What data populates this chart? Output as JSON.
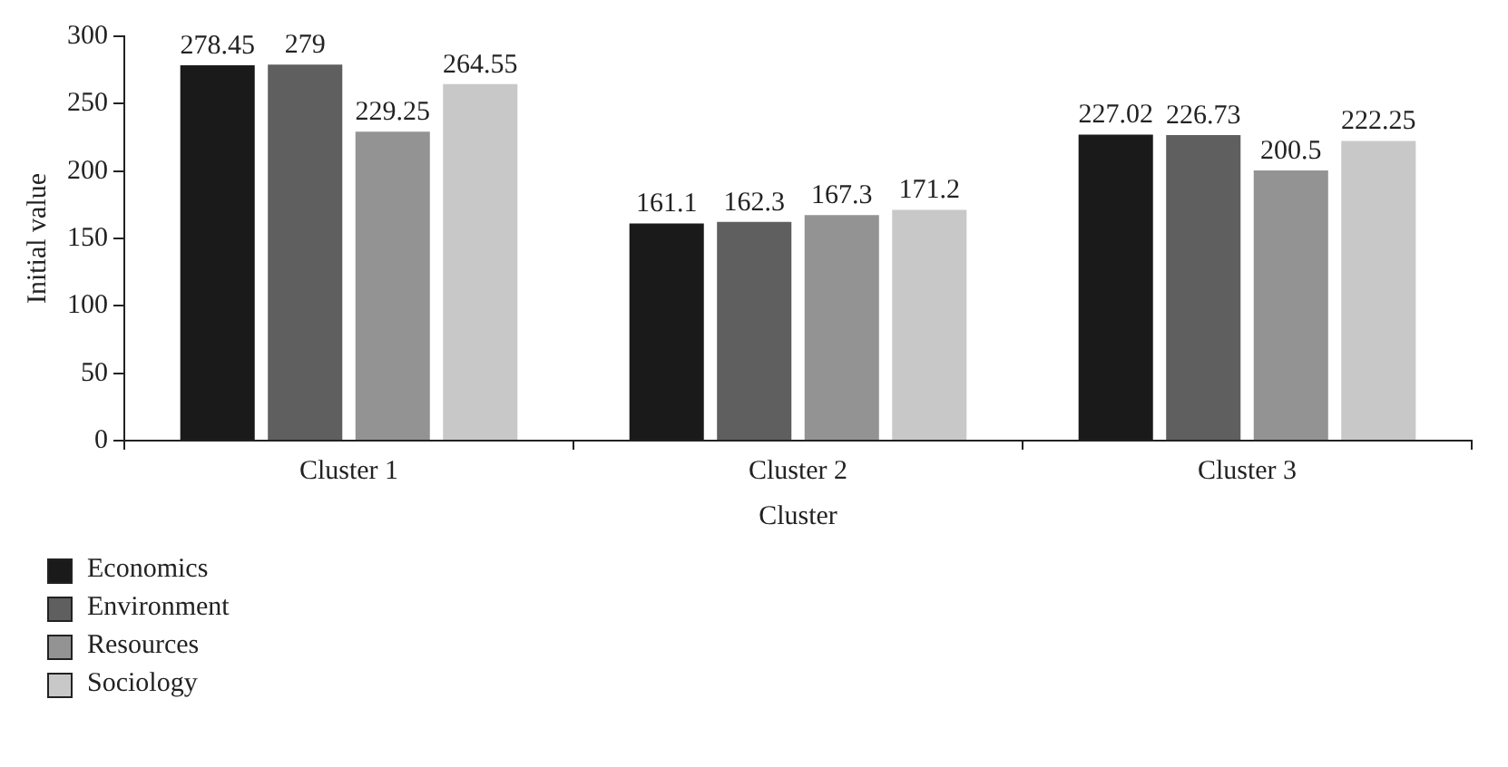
{
  "chart_data": {
    "type": "bar",
    "xlabel": "Cluster",
    "ylabel": "Initial value",
    "categories": [
      "Cluster 1",
      "Cluster 2",
      "Cluster 3"
    ],
    "series": [
      {
        "name": "Economics",
        "color": "#1a1a1a",
        "values": [
          278.45,
          161.1,
          227.02
        ]
      },
      {
        "name": "Environment",
        "color": "#5f5f5f",
        "values": [
          279,
          162.3,
          226.73
        ]
      },
      {
        "name": "Resources",
        "color": "#939393",
        "values": [
          229.25,
          167.3,
          200.5
        ]
      },
      {
        "name": "Sociology",
        "color": "#c8c8c8",
        "values": [
          264.55,
          171.2,
          222.25
        ]
      }
    ],
    "ylim": [
      0,
      300
    ],
    "yticks": [
      0,
      50,
      100,
      150,
      200,
      250,
      300
    ],
    "grid": false,
    "legend": "bottom left",
    "data_labels": true
  }
}
